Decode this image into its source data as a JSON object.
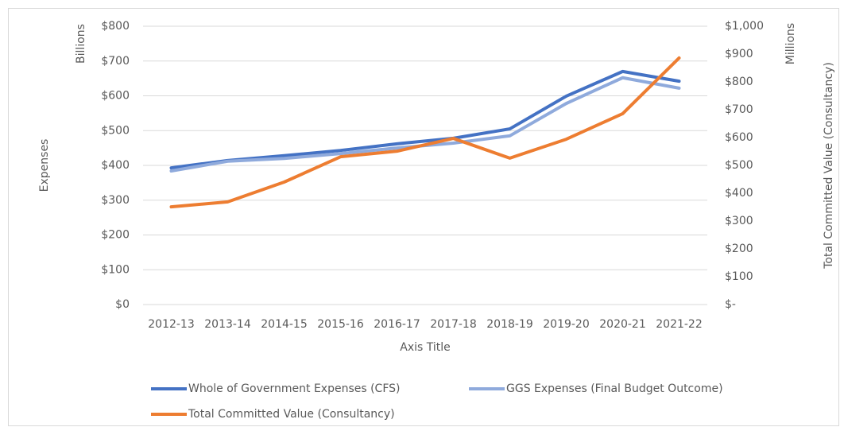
{
  "chart_data": {
    "type": "line",
    "x_label": "Axis Title",
    "y_label": "Expenses",
    "y_unit": "Billions",
    "y2_label": "Total Committed Value (Consultancy)",
    "y2_unit": "Millions",
    "categories": [
      "2012-13",
      "2013-14",
      "2014-15",
      "2015-16",
      "2016-17",
      "2017-18",
      "2018-19",
      "2019-20",
      "2020-21",
      "2021-22"
    ],
    "series": [
      {
        "name": "Whole of Government Expenses (CFS)",
        "color": "#4472c4",
        "values": [
          393,
          414,
          428,
          443,
          462,
          478,
          505,
          599,
          670,
          642
        ]
      },
      {
        "name": "GGS Expenses (Final Budget Outcome)",
        "color": "#8faadc",
        "values": [
          384,
          412,
          420,
          434,
          450,
          464,
          485,
          578,
          652,
          622
        ]
      },
      {
        "name": "Total Committed Value (Consultancy)",
        "color": "#ed7d31",
        "axis": "y2",
        "values": [
          351,
          369,
          440,
          531,
          551,
          597,
          526,
          594,
          686,
          886
        ]
      }
    ],
    "ylim": [
      0,
      800
    ],
    "yticks": [
      {
        "value": 0,
        "label": "$0"
      },
      {
        "value": 100,
        "label": "$100"
      },
      {
        "value": 200,
        "label": "$200"
      },
      {
        "value": 300,
        "label": "$300"
      },
      {
        "value": 400,
        "label": "$400"
      },
      {
        "value": 500,
        "label": "$500"
      },
      {
        "value": 600,
        "label": "$600"
      },
      {
        "value": 700,
        "label": "$700"
      },
      {
        "value": 800,
        "label": "$800"
      }
    ],
    "y2lim": [
      0,
      1000
    ],
    "y2ticks": [
      {
        "value": 0,
        "label": "$-"
      },
      {
        "value": 100,
        "label": "$100"
      },
      {
        "value": 200,
        "label": "$200"
      },
      {
        "value": 300,
        "label": "$300"
      },
      {
        "value": 400,
        "label": "$400"
      },
      {
        "value": 500,
        "label": "$500"
      },
      {
        "value": 600,
        "label": "$600"
      },
      {
        "value": 700,
        "label": "$700"
      },
      {
        "value": 800,
        "label": "$800"
      },
      {
        "value": 900,
        "label": "$900"
      },
      {
        "value": 1000,
        "label": "$1,000"
      }
    ],
    "grid": true
  }
}
